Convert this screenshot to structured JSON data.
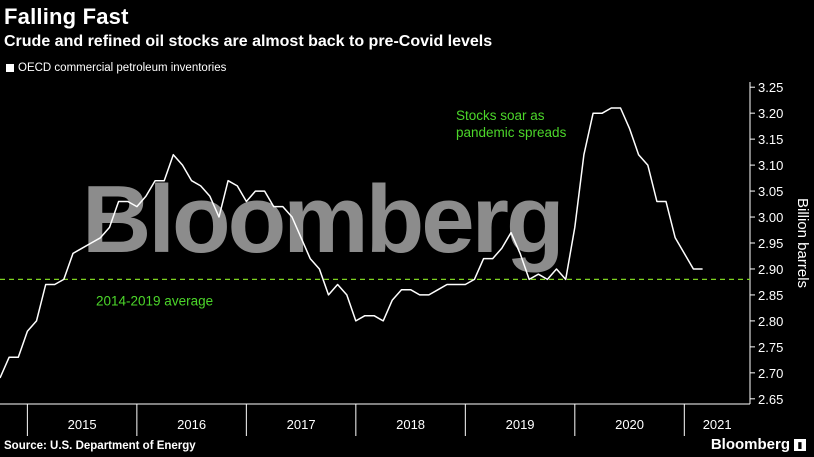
{
  "header": {
    "title": "Falling Fast",
    "subtitle": "Crude and refined oil stocks are almost back to pre-Covid levels"
  },
  "legend": {
    "label": "OECD commercial petroleum inventories"
  },
  "footer": {
    "source": "Source: U.S. Department of Energy",
    "brand": "Bloomberg"
  },
  "watermark": "Bloomberg",
  "colors": {
    "line": "#ffffff",
    "average": "#7ed321",
    "annotation": "#4cd62a",
    "background": "#000000"
  },
  "chart_data": {
    "type": "line",
    "ylabel": "Billion barrels",
    "ylim": [
      2.65,
      3.25
    ],
    "yticks": [
      2.65,
      2.7,
      2.75,
      2.8,
      2.85,
      2.9,
      2.95,
      3.0,
      3.05,
      3.1,
      3.15,
      3.2,
      3.25
    ],
    "ytick_labels": [
      "2.65",
      "2.70",
      "2.75",
      "2.80",
      "2.85",
      "2.90",
      "2.95",
      "3.00",
      "3.05",
      "3.10",
      "3.15",
      "3.20",
      "3.25"
    ],
    "x_year_labels": [
      "2015",
      "2016",
      "2017",
      "2018",
      "2019",
      "2020",
      "2021"
    ],
    "x_start": 2014.75,
    "x_end": 2021.6,
    "series": [
      {
        "name": "OECD commercial petroleum inventories",
        "x": [
          2014.75,
          2014.833,
          2014.917,
          2015.0,
          2015.083,
          2015.167,
          2015.25,
          2015.333,
          2015.417,
          2015.5,
          2015.583,
          2015.667,
          2015.75,
          2015.833,
          2015.917,
          2016.0,
          2016.083,
          2016.167,
          2016.25,
          2016.333,
          2016.417,
          2016.5,
          2016.583,
          2016.667,
          2016.75,
          2016.833,
          2016.917,
          2017.0,
          2017.083,
          2017.167,
          2017.25,
          2017.333,
          2017.417,
          2017.5,
          2017.583,
          2017.667,
          2017.75,
          2017.833,
          2017.917,
          2018.0,
          2018.083,
          2018.167,
          2018.25,
          2018.333,
          2018.417,
          2018.5,
          2018.583,
          2018.667,
          2018.75,
          2018.833,
          2018.917,
          2019.0,
          2019.083,
          2019.167,
          2019.25,
          2019.333,
          2019.417,
          2019.5,
          2019.583,
          2019.667,
          2019.75,
          2019.833,
          2019.917,
          2020.0,
          2020.083,
          2020.167,
          2020.25,
          2020.333,
          2020.417,
          2020.5,
          2020.583,
          2020.667,
          2020.75,
          2020.833,
          2020.917,
          2021.0,
          2021.083,
          2021.167
        ],
        "values": [
          2.69,
          2.73,
          2.73,
          2.78,
          2.8,
          2.87,
          2.87,
          2.88,
          2.93,
          2.94,
          2.95,
          2.96,
          2.98,
          3.03,
          3.03,
          3.02,
          3.04,
          3.07,
          3.07,
          3.12,
          3.1,
          3.07,
          3.06,
          3.04,
          3.0,
          3.07,
          3.06,
          3.03,
          3.05,
          3.05,
          3.02,
          3.02,
          3.0,
          2.96,
          2.92,
          2.9,
          2.85,
          2.87,
          2.85,
          2.8,
          2.81,
          2.81,
          2.8,
          2.84,
          2.86,
          2.86,
          2.85,
          2.85,
          2.86,
          2.87,
          2.87,
          2.87,
          2.88,
          2.92,
          2.92,
          2.94,
          2.97,
          2.93,
          2.88,
          2.89,
          2.88,
          2.9,
          2.88,
          2.98,
          3.12,
          3.2,
          3.2,
          3.21,
          3.21,
          3.17,
          3.12,
          3.1,
          3.03,
          3.03,
          2.96,
          2.93,
          2.9,
          2.9
        ]
      }
    ],
    "average": {
      "label": "2014-2019 average",
      "value": 2.88
    },
    "annotation": {
      "lines": [
        "Stocks soar as",
        "pandemic spreads"
      ],
      "x": 2019.85,
      "y": 3.2
    },
    "grid": false
  }
}
